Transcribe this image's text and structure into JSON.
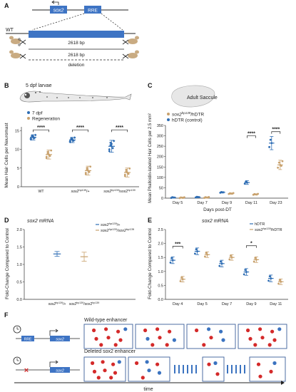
{
  "panel_labels": {
    "a": "A",
    "b": "B",
    "c": "C",
    "d": "D",
    "e": "E",
    "f": "F"
  },
  "panel_a": {
    "gene": "sox2",
    "enhancer": "RRE",
    "genotype": "WT",
    "length": "2618 bp",
    "deletion_length": "2618 bp",
    "deletion_word": "deletion"
  },
  "panel_b": {
    "caption": "5 dpf larvae",
    "legend": [
      "7 dpf",
      "Regeneration"
    ],
    "colors": {
      "dpf7": "#2e6db4",
      "regen": "#c9a26e"
    },
    "chart_data": {
      "type": "scatter",
      "ylabel": "Mean Hair Cells per Neuromast",
      "categories": [
        "WT",
        "sox2^{hp139}/+",
        "sox2^{hp139}/sox2^{hp139}"
      ],
      "ylim": [
        0,
        16
      ],
      "yticks": [
        0,
        5,
        10,
        15
      ],
      "series": [
        {
          "name": "7 dpf",
          "values": [
            13.2,
            12.5,
            10.8
          ]
        },
        {
          "name": "Regeneration",
          "values": [
            8.6,
            4.3,
            3.8
          ]
        }
      ],
      "significance": [
        "****",
        "****",
        "****"
      ]
    },
    "xlabels": [
      {
        "base": "WT",
        "sup": "",
        "tail": ""
      },
      {
        "base": "sox2",
        "sup": "hp139",
        "tail": "/+"
      },
      {
        "base": "sox2",
        "sup": "hp139",
        "tail": "/sox2",
        "sup2": "hp139"
      }
    ]
  },
  "panel_c": {
    "caption": "Adult Saccule",
    "legend": [
      "sox2^{hp139}/hDTR",
      "hDTR (control)"
    ],
    "legend_parts": {
      "base": "sox2",
      "sup": "hp139",
      "tail": "/hDTR",
      "ctrl": "hDTR (control)"
    },
    "chart_data": {
      "type": "scatter",
      "ylabel": "Mean Phalloidin-labeled Hair Cells per 2.5 mm²",
      "xlabel": "Days post-DT",
      "categories": [
        "Day 5",
        "Day 7",
        "Day 9",
        "Day 11",
        "Day 23"
      ],
      "ylim": [
        0,
        350
      ],
      "yticks": [
        0,
        50,
        100,
        150,
        200,
        250,
        300,
        350
      ],
      "series": [
        {
          "name": "hDTR (control)",
          "values": [
            3,
            5,
            28,
            75,
            265
          ]
        },
        {
          "name": "sox2^{hp139}/hDTR",
          "values": [
            2,
            3,
            22,
            18,
            160
          ]
        }
      ],
      "significance": [
        "",
        "",
        "",
        "****",
        "****"
      ]
    }
  },
  "panel_d": {
    "title": "sox2 mRNA",
    "legend_parts": [
      {
        "base": "sox2",
        "sup": "hp139",
        "tail": "/+"
      },
      {
        "base": "sox2",
        "sup": "hp139",
        "tail": "/sox2",
        "sup2": "hp139"
      }
    ],
    "chart_data": {
      "type": "scatter",
      "ylabel": "Fold-Change Compared to Control",
      "categories": [
        "sox2^{hp139}/+",
        "sox2^{hp139}/sox2^{hp139}"
      ],
      "ylim": [
        0,
        2.0
      ],
      "yticks": [
        0,
        0.5,
        1.0,
        1.5,
        2.0
      ],
      "series": [
        {
          "name": "sox2^{hp139}/+",
          "values": [
            1.3
          ]
        },
        {
          "name": "sox2^{hp139}/sox2^{hp139}",
          "values": [
            1.22
          ]
        }
      ]
    }
  },
  "panel_e": {
    "title": "sox2 mRNA",
    "legend_parts": {
      "ctrl": "hDTR",
      "base": "sox2",
      "sup": "hp139",
      "tail": "/hDTR"
    },
    "chart_data": {
      "type": "scatter",
      "ylabel": "Fold-Change Compared to Control",
      "categories": [
        "Day 4",
        "Day 5",
        "Day 7",
        "Day 9",
        "Day 11"
      ],
      "ylim": [
        0,
        2.5
      ],
      "yticks": [
        0,
        0.5,
        1.0,
        1.5,
        2.0,
        2.5
      ],
      "series": [
        {
          "name": "hDTR",
          "values": [
            1.4,
            1.72,
            1.28,
            0.98,
            0.75
          ]
        },
        {
          "name": "sox2^{hp139}/hDTR",
          "values": [
            0.72,
            1.6,
            1.5,
            1.42,
            0.63
          ]
        }
      ],
      "significance": [
        "***",
        "",
        "",
        "*",
        ""
      ]
    }
  },
  "panel_f": {
    "wt_label": "Wild-type enhancer",
    "del_label": "Deleted sox2 enhancer",
    "gene": "sox2",
    "enhancer": "RRE",
    "axis_label": "time",
    "colors": {
      "red": "#d42a2a",
      "blue": "#3b73c0"
    }
  }
}
